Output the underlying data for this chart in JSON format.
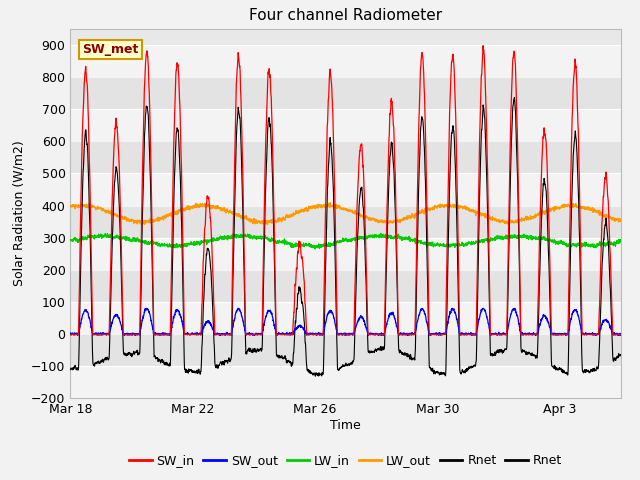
{
  "title": "Four channel Radiometer",
  "xlabel": "Time",
  "ylabel": "Solar Radiation (W/m2)",
  "ylim": [
    -200,
    950
  ],
  "yticks": [
    -200,
    -100,
    0,
    100,
    200,
    300,
    400,
    500,
    600,
    700,
    800,
    900
  ],
  "xtick_labels": [
    "Mar 18",
    "Mar 22",
    "Mar 26",
    "Mar 30",
    "Apr 3"
  ],
  "xtick_positions": [
    0,
    4,
    8,
    12,
    16
  ],
  "legend_entries": [
    "SW_in",
    "SW_out",
    "LW_in",
    "LW_out",
    "Rnet",
    "Rnet"
  ],
  "colors": {
    "SW_in": "#ff0000",
    "SW_out": "#0000ff",
    "LW_in": "#00cc00",
    "LW_out": "#ff9900",
    "Rnet1": "#000000",
    "Rnet2": "#000000"
  },
  "annotation_text": "SW_met",
  "annotation_color": "#8B0000",
  "annotation_bg": "#ffffcc",
  "annotation_border": "#cc9900",
  "n_days": 18,
  "samples_per_day": 144,
  "peak_heights": [
    820,
    660,
    880,
    840,
    430,
    860,
    820,
    275,
    810,
    590,
    720,
    870,
    870,
    880,
    870,
    630,
    840,
    490
  ]
}
